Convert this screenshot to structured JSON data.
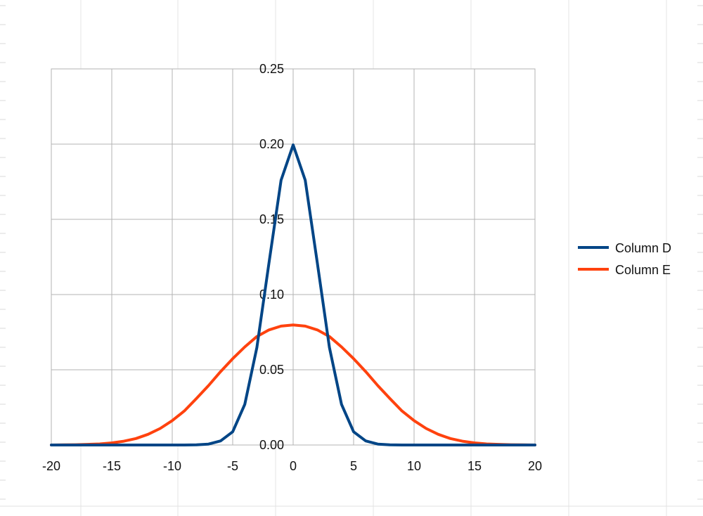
{
  "chart_data": {
    "type": "line",
    "title": "",
    "xlabel": "",
    "ylabel": "",
    "xlim": [
      -20,
      20
    ],
    "ylim": [
      0,
      0.25
    ],
    "x_ticks": [
      "-20",
      "-15",
      "-10",
      "-5",
      "0",
      "5",
      "10",
      "15",
      "20"
    ],
    "y_ticks": [
      "0.00",
      "0.05",
      "0.10",
      "0.15",
      "0.20",
      "0.25"
    ],
    "grid": true,
    "legend_position": "right",
    "x": [
      -20,
      -19,
      -18,
      -17,
      -16,
      -15,
      -14,
      -13,
      -12,
      -11,
      -10,
      -9,
      -8,
      -7,
      -6,
      -5,
      -4,
      -3,
      -2,
      -1,
      0,
      1,
      2,
      3,
      4,
      5,
      6,
      7,
      8,
      9,
      10,
      11,
      12,
      13,
      14,
      15,
      16,
      17,
      18,
      19,
      20
    ],
    "series": [
      {
        "name": "Column D",
        "color": "#004586",
        "values": [
          0,
          0,
          0,
          0,
          0,
          0,
          0,
          0,
          0,
          0,
          0,
          0,
          0.0001,
          0.0006,
          0.0027,
          0.0088,
          0.027,
          0.0648,
          0.121,
          0.176,
          0.1995,
          0.176,
          0.121,
          0.0648,
          0.027,
          0.0088,
          0.0027,
          0.0006,
          0.0001,
          0,
          0,
          0,
          0,
          0,
          0,
          0,
          0,
          0,
          0,
          0,
          0
        ]
      },
      {
        "name": "Column E",
        "color": "#ff420e",
        "values": [
          0.0,
          0.0001,
          0.0002,
          0.0004,
          0.0007,
          0.0014,
          0.0025,
          0.0043,
          0.0071,
          0.011,
          0.0162,
          0.0226,
          0.0309,
          0.0395,
          0.0488,
          0.0574,
          0.0652,
          0.0721,
          0.0765,
          0.079,
          0.0798,
          0.079,
          0.0765,
          0.0721,
          0.0652,
          0.0574,
          0.0488,
          0.0395,
          0.0309,
          0.0226,
          0.0162,
          0.011,
          0.0071,
          0.0043,
          0.0025,
          0.0014,
          0.0007,
          0.0004,
          0.0002,
          0.0001,
          0.0
        ]
      }
    ]
  }
}
